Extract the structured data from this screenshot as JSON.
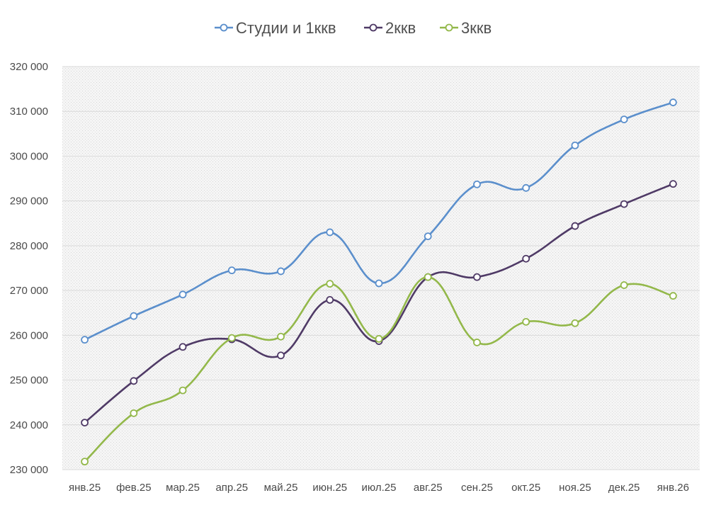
{
  "chart_data": {
    "type": "line",
    "title": "",
    "xlabel": "",
    "ylabel": "",
    "categories": [
      "янв.25",
      "фев.25",
      "мар.25",
      "апр.25",
      "май.25",
      "июн.25",
      "июл.25",
      "авг.25",
      "сен.25",
      "окт.25",
      "ноя.25",
      "дек.25",
      "янв.26"
    ],
    "y_ticks": [
      230000,
      240000,
      250000,
      260000,
      270000,
      280000,
      290000,
      300000,
      310000,
      320000
    ],
    "y_tick_labels": [
      "230 000",
      "240 000",
      "250 000",
      "260 000",
      "270 000",
      "280 000",
      "290 000",
      "300 000",
      "310 000",
      "320 000"
    ],
    "ylim": [
      230000,
      320000
    ],
    "grid": true,
    "legend_position": "top",
    "series": [
      {
        "name": "Студии и 1ккв",
        "color": "#5b8fcc",
        "values": [
          259000,
          264300,
          269100,
          274500,
          274300,
          283000,
          271600,
          282100,
          293700,
          292900,
          302400,
          308200,
          312000
        ]
      },
      {
        "name": "2ккв",
        "color": "#4f3a66",
        "values": [
          240500,
          249800,
          257400,
          259100,
          255500,
          267900,
          258700,
          273000,
          273000,
          277100,
          284400,
          289300,
          293800
        ]
      },
      {
        "name": "3ккв",
        "color": "#93b84a",
        "values": [
          231800,
          242600,
          247700,
          259400,
          259700,
          271500,
          259200,
          273000,
          258400,
          263000,
          262700,
          271200,
          268800
        ]
      }
    ]
  }
}
